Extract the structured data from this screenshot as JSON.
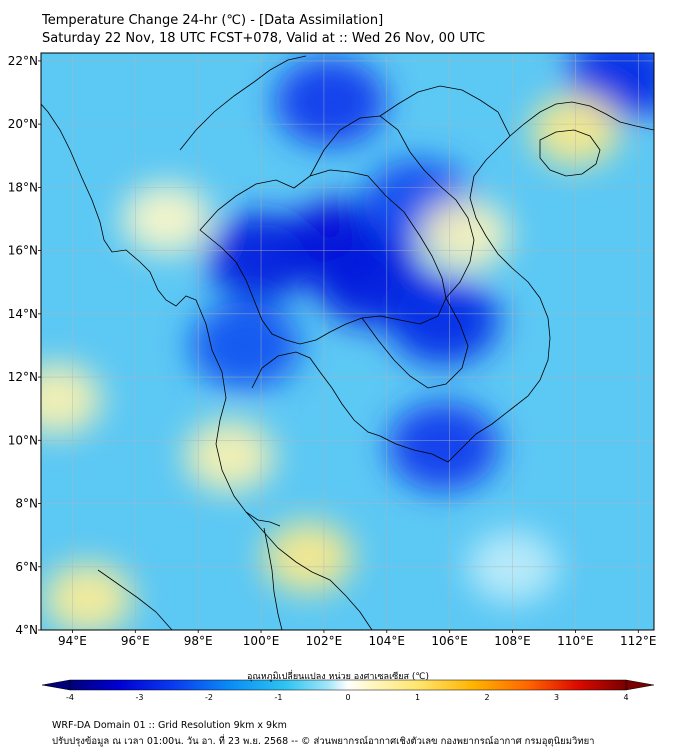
{
  "header": {
    "title_line1": "Temperature Change 24-hr (℃) - [Data Assimilation]",
    "title_line2": "Saturday 22 Nov, 18 UTC FCST+078, Valid at :: Wed 26 Nov, 00 UTC"
  },
  "map": {
    "lon_range": [
      93,
      112.5
    ],
    "lat_range": [
      4,
      22.25
    ],
    "lat_ticks": [
      {
        "value": 4,
        "label": "4°N"
      },
      {
        "value": 6,
        "label": "6°N"
      },
      {
        "value": 8,
        "label": "8°N"
      },
      {
        "value": 10,
        "label": "10°N"
      },
      {
        "value": 12,
        "label": "12°N"
      },
      {
        "value": 14,
        "label": "14°N"
      },
      {
        "value": 16,
        "label": "16°N"
      },
      {
        "value": 18,
        "label": "18°N"
      },
      {
        "value": 20,
        "label": "20°N"
      },
      {
        "value": 22,
        "label": "22°N"
      }
    ],
    "lon_ticks": [
      {
        "value": 94,
        "label": "94°E"
      },
      {
        "value": 96,
        "label": "96°E"
      },
      {
        "value": 98,
        "label": "98°E"
      },
      {
        "value": 100,
        "label": "100°E"
      },
      {
        "value": 102,
        "label": "102°E"
      },
      {
        "value": 104,
        "label": "104°E"
      },
      {
        "value": 106,
        "label": "106°E"
      },
      {
        "value": 108,
        "label": "108°E"
      },
      {
        "value": 110,
        "label": "110°E"
      },
      {
        "value": 112,
        "label": "112°E"
      }
    ],
    "background_color": "#5cc8f4",
    "grid": true,
    "field_anomalies": [
      {
        "lon": 102.5,
        "lat": 16.2,
        "value": -3.2
      },
      {
        "lon": 100.0,
        "lat": 15.8,
        "value": -3.0
      },
      {
        "lon": 103.5,
        "lat": 15.0,
        "value": -3.0
      },
      {
        "lon": 105.8,
        "lat": 13.8,
        "value": -2.8
      },
      {
        "lon": 102.2,
        "lat": 20.7,
        "value": -2.6
      },
      {
        "lon": 105.8,
        "lat": 9.8,
        "value": -2.6
      },
      {
        "lon": 111.5,
        "lat": 21.5,
        "value": -2.8
      },
      {
        "lon": 99.5,
        "lat": 13.0,
        "value": -2.3
      },
      {
        "lon": 105.0,
        "lat": 17.5,
        "value": -2.4
      },
      {
        "lon": 101.5,
        "lat": 6.3,
        "value": 0.8
      },
      {
        "lon": 94.5,
        "lat": 5.0,
        "value": 0.7
      },
      {
        "lon": 110.0,
        "lat": 19.8,
        "value": 0.8
      },
      {
        "lon": 99.0,
        "lat": 9.5,
        "value": 0.5
      },
      {
        "lon": 93.5,
        "lat": 11.3,
        "value": 0.5
      },
      {
        "lon": 106.5,
        "lat": 16.5,
        "value": 0.4
      },
      {
        "lon": 97.0,
        "lat": 17.0,
        "value": 0.3
      },
      {
        "lon": 108.0,
        "lat": 6.0,
        "value": -0.2
      }
    ]
  },
  "colorbar": {
    "title": "อุณหภูมิเปลี่ยนแปลง หน่วย องศาเซลเซียส (℃)",
    "min": -4,
    "max": 4,
    "ticks": [
      {
        "value": -4,
        "label": "-4"
      },
      {
        "value": -3,
        "label": "-3"
      },
      {
        "value": -2,
        "label": "-2"
      },
      {
        "value": -1,
        "label": "-1"
      },
      {
        "value": 0,
        "label": "0"
      },
      {
        "value": 1,
        "label": "1"
      },
      {
        "value": 2,
        "label": "2"
      },
      {
        "value": 3,
        "label": "3"
      },
      {
        "value": 4,
        "label": "4"
      }
    ],
    "color_stops": [
      {
        "value": -4,
        "color": "#00007a"
      },
      {
        "value": -3.3,
        "color": "#0000d2"
      },
      {
        "value": -2.5,
        "color": "#0a3cf0"
      },
      {
        "value": -1.7,
        "color": "#0a8cf5"
      },
      {
        "value": -0.9,
        "color": "#2ec4f2"
      },
      {
        "value": -0.3,
        "color": "#a0e4f8"
      },
      {
        "value": 0,
        "color": "#ffffff"
      },
      {
        "value": 0.3,
        "color": "#fff8c8"
      },
      {
        "value": 1.0,
        "color": "#ffe66e"
      },
      {
        "value": 1.8,
        "color": "#ffb400"
      },
      {
        "value": 2.6,
        "color": "#ff6400"
      },
      {
        "value": 3.3,
        "color": "#dc0a00"
      },
      {
        "value": 4,
        "color": "#7a0000"
      }
    ]
  },
  "footer": {
    "line1": "WRF-DA Domain 01 :: Grid Resolution 9km x 9km",
    "line2": "ปรับปรุงข้อมูล ณ เวลา 01:00น. วัน อา. ที่ 23 พ.ย. 2568 -- © ส่วนพยากรณ์อากาศเชิงตัวเลข กองพยากรณ์อากาศ กรมอุตุนิยมวิทยา"
  }
}
